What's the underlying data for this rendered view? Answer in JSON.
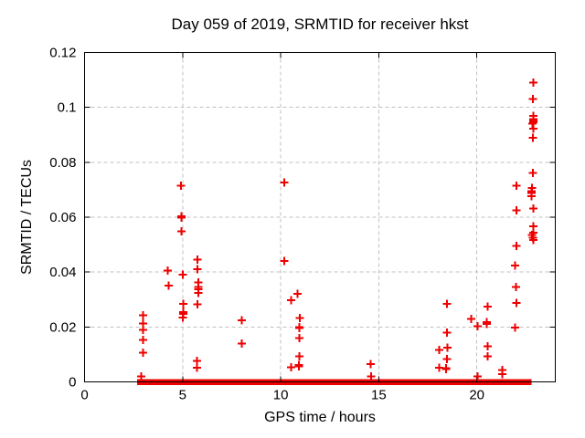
{
  "chart_data": {
    "type": "scatter",
    "title": "Day 059 of 2019, SRMTID for receiver hkst",
    "xlabel": "GPS time / hours",
    "ylabel": "SRMTID / TECUs",
    "xlim": [
      0,
      24
    ],
    "ylim": [
      0,
      0.12
    ],
    "xticks": [
      0,
      5,
      10,
      15,
      20
    ],
    "yticks": [
      0,
      0.02,
      0.04,
      0.06,
      0.08,
      0.1,
      0.12
    ],
    "grid": true,
    "grid_color": "#c0c0c0",
    "marker": "plus",
    "marker_color": "#ee0000",
    "border_color": "#000000",
    "zero_band": {
      "x_start": 2.69,
      "x_end": 22.79,
      "value": 0,
      "note": "dense overlapping points at zero"
    },
    "points": [
      [
        2.98,
        0.0243
      ],
      [
        2.98,
        0.0213
      ],
      [
        2.98,
        0.019
      ],
      [
        2.98,
        0.0153
      ],
      [
        2.98,
        0.0106
      ],
      [
        2.89,
        0.002
      ],
      [
        4.24,
        0.0405
      ],
      [
        4.29,
        0.0351
      ],
      [
        4.91,
        0.0715
      ],
      [
        4.95,
        0.0604
      ],
      [
        4.95,
        0.0598
      ],
      [
        4.95,
        0.0549
      ],
      [
        5.0,
        0.039
      ],
      [
        5.03,
        0.0285
      ],
      [
        5.03,
        0.0255
      ],
      [
        5.03,
        0.0248
      ],
      [
        5.0,
        0.0235
      ],
      [
        5.76,
        0.0446
      ],
      [
        5.76,
        0.041
      ],
      [
        5.81,
        0.0362
      ],
      [
        5.81,
        0.0345
      ],
      [
        5.81,
        0.0338
      ],
      [
        5.81,
        0.0324
      ],
      [
        5.76,
        0.0282
      ],
      [
        5.73,
        0.0077
      ],
      [
        5.73,
        0.0052
      ],
      [
        8.01,
        0.0224
      ],
      [
        8.01,
        0.0139
      ],
      [
        10.19,
        0.0726
      ],
      [
        10.19,
        0.044
      ],
      [
        10.53,
        0.0298
      ],
      [
        10.54,
        0.0054
      ],
      [
        10.86,
        0.032
      ],
      [
        10.97,
        0.0232
      ],
      [
        10.96,
        0.02
      ],
      [
        10.96,
        0.0196
      ],
      [
        10.96,
        0.016
      ],
      [
        10.94,
        0.0093
      ],
      [
        10.92,
        0.0062
      ],
      [
        10.92,
        0.0056
      ],
      [
        14.59,
        0.0065
      ],
      [
        14.6,
        0.002
      ],
      [
        18.08,
        0.0116
      ],
      [
        18.08,
        0.0052
      ],
      [
        18.47,
        0.0285
      ],
      [
        18.47,
        0.018
      ],
      [
        18.5,
        0.0124
      ],
      [
        18.47,
        0.0083
      ],
      [
        18.43,
        0.005
      ],
      [
        18.43,
        0.0046
      ],
      [
        19.71,
        0.0229
      ],
      [
        20.05,
        0.0202
      ],
      [
        20.05,
        0.002
      ],
      [
        20.55,
        0.0274
      ],
      [
        20.5,
        0.0218
      ],
      [
        20.5,
        0.0211
      ],
      [
        20.55,
        0.013
      ],
      [
        20.55,
        0.0093
      ],
      [
        21.29,
        0.0043
      ],
      [
        21.29,
        0.0028
      ],
      [
        22.03,
        0.0714
      ],
      [
        22.03,
        0.0625
      ],
      [
        22.03,
        0.0495
      ],
      [
        21.96,
        0.0423
      ],
      [
        22.0,
        0.0346
      ],
      [
        22.03,
        0.0287
      ],
      [
        21.96,
        0.0198
      ],
      [
        22.89,
        0.109
      ],
      [
        22.85,
        0.103
      ],
      [
        22.88,
        0.0969
      ],
      [
        22.88,
        0.0957
      ],
      [
        22.88,
        0.095
      ],
      [
        22.88,
        0.0945
      ],
      [
        22.84,
        0.0941
      ],
      [
        22.87,
        0.0922
      ],
      [
        22.85,
        0.0889
      ],
      [
        22.85,
        0.0761
      ],
      [
        22.8,
        0.0706
      ],
      [
        22.79,
        0.0695
      ],
      [
        22.79,
        0.0688
      ],
      [
        22.79,
        0.0676
      ],
      [
        22.89,
        0.0632
      ],
      [
        22.87,
        0.0567
      ],
      [
        22.88,
        0.0543
      ],
      [
        22.8,
        0.0536
      ],
      [
        22.85,
        0.0525
      ],
      [
        22.87,
        0.0517
      ]
    ]
  }
}
